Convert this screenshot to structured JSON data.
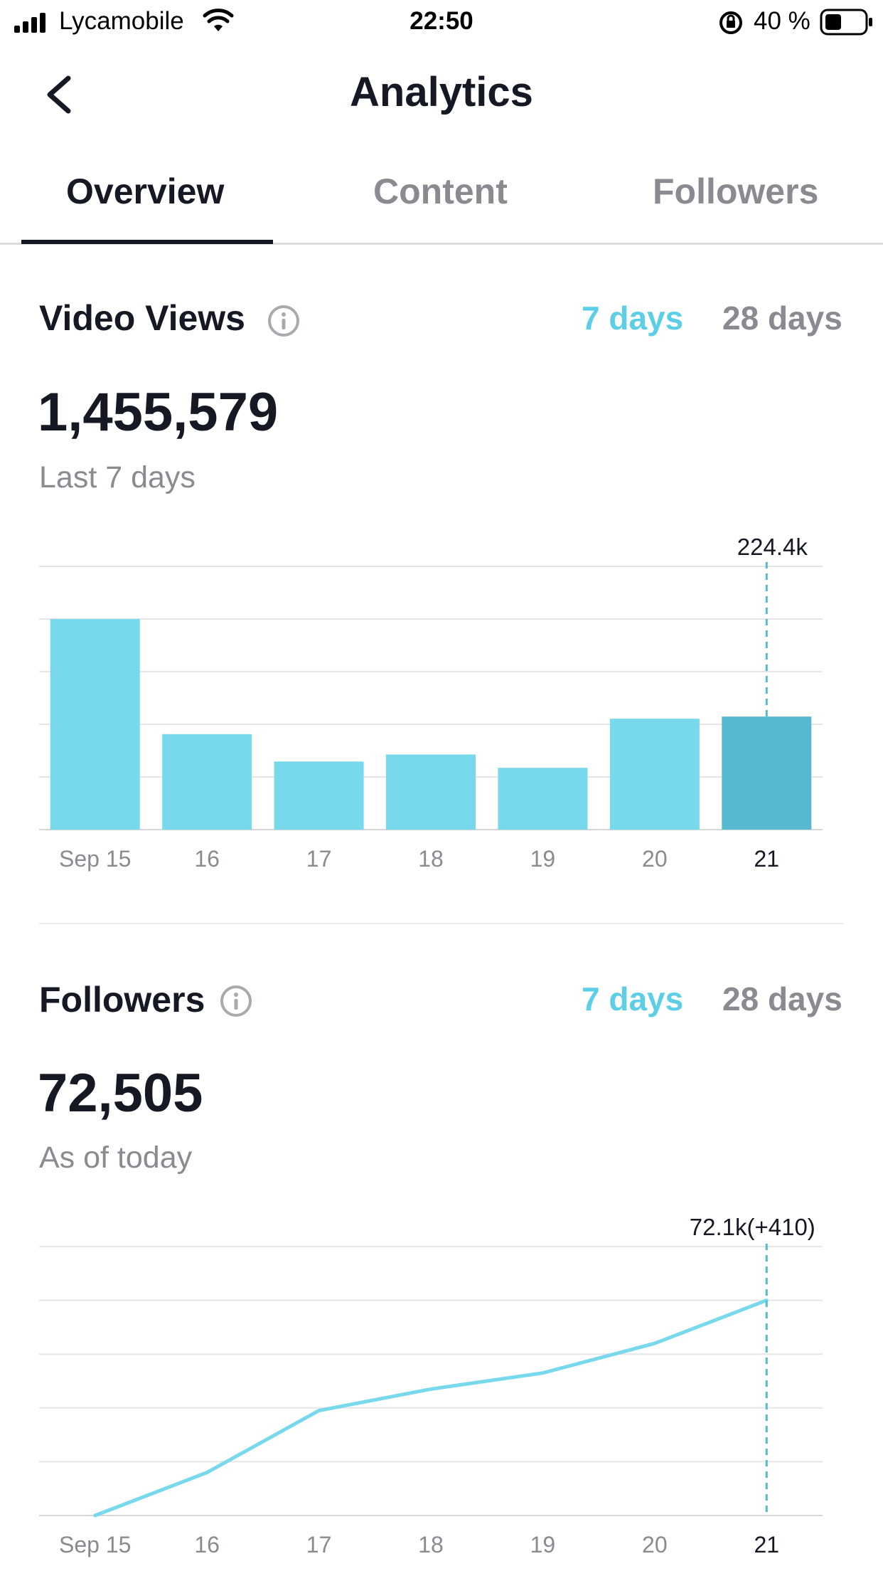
{
  "status_bar": {
    "carrier": "Lycamobile",
    "time": "22:50",
    "battery": "40 %"
  },
  "header": {
    "title": "Analytics",
    "back_icon": "chevron-left-icon"
  },
  "tabs": [
    {
      "label": "Overview",
      "active": true
    },
    {
      "label": "Content",
      "active": false
    },
    {
      "label": "Followers",
      "active": false
    }
  ],
  "video_views": {
    "title": "Video Views",
    "range_7": "7 days",
    "range_28": "28 days",
    "total": "1,455,579",
    "subtitle": "Last 7 days",
    "highlight_label": "224.4k"
  },
  "followers": {
    "title": "Followers",
    "range_7": "7 days",
    "range_28": "28 days",
    "total": "72,505",
    "subtitle": "As of today",
    "highlight_label": "72.1k(+410)"
  },
  "colors": {
    "accent": "#5ccfe6",
    "bar": "#77d9eb",
    "bar_selected": "#56b9d0",
    "text_primary": "#161823",
    "text_secondary": "#8a8b91"
  },
  "chart_data": [
    {
      "type": "bar",
      "categories": [
        "Sep 15",
        "16",
        "17",
        "18",
        "19",
        "20",
        "21"
      ],
      "values": [
        300,
        136,
        97,
        107,
        88,
        158,
        161
      ],
      "ylim": [
        0,
        375
      ],
      "grid": true,
      "selected_index": 6
    },
    {
      "type": "line",
      "categories": [
        "Sep 15",
        "16",
        "17",
        "18",
        "19",
        "20",
        "21"
      ],
      "values": [
        0,
        16,
        39,
        47,
        53,
        64,
        80
      ],
      "ylim": [
        0,
        100
      ],
      "grid": true,
      "selected_index": 6
    }
  ]
}
